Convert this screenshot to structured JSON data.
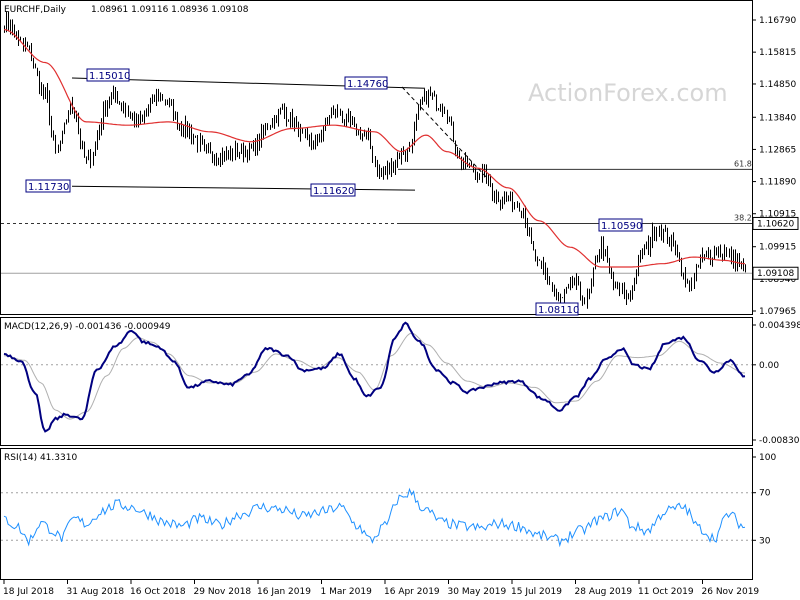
{
  "chart_data": {
    "type": "ohlc",
    "header": {
      "symbol": "EURCHF,Daily",
      "ohlc": "1.08961 1.09116 1.08936 1.09108"
    },
    "watermark": "ActionForex.com",
    "price_ticks": [
      "1.16790",
      "1.15815",
      "1.14850",
      "1.13840",
      "1.12865",
      "1.11890",
      "1.10915",
      "1.09915",
      "1.08940",
      "1.07965"
    ],
    "current_price": "1.09108",
    "level_tag": "1.10620",
    "date_ticks": [
      "18 Jul 2018",
      "31 Aug 2018",
      "16 Oct 2018",
      "29 Nov 2018",
      "16 Jan 2019",
      "1 Mar 2019",
      "16 Apr 2019",
      "30 May 2019",
      "15 Jul 2019",
      "28 Aug 2019",
      "11 Oct 2019",
      "26 Nov 2019"
    ],
    "annotations": [
      "1.15010",
      "1.14760",
      "1.11730",
      "1.11620",
      "1.10590",
      "1.08110"
    ],
    "fib_levels": [
      {
        "label": "61.8",
        "value": 1.1226
      },
      {
        "label": "38.2",
        "value": 1.1062
      }
    ],
    "price_anchors": [
      [
        0,
        1.168
      ],
      [
        10,
        1.16
      ],
      [
        20,
        1.145
      ],
      [
        25,
        1.128
      ],
      [
        33,
        1.142
      ],
      [
        40,
        1.125
      ],
      [
        52,
        1.145
      ],
      [
        65,
        1.137
      ],
      [
        75,
        1.145
      ],
      [
        88,
        1.135
      ],
      [
        100,
        1.127
      ],
      [
        118,
        1.128
      ],
      [
        135,
        1.14
      ],
      [
        150,
        1.13
      ],
      [
        160,
        1.14
      ],
      [
        175,
        1.133
      ],
      [
        183,
        1.121
      ],
      [
        195,
        1.128
      ],
      [
        205,
        1.145
      ],
      [
        213,
        1.142
      ],
      [
        222,
        1.125
      ],
      [
        232,
        1.121
      ],
      [
        240,
        1.114
      ],
      [
        250,
        1.112
      ],
      [
        260,
        1.093
      ],
      [
        270,
        1.083
      ],
      [
        277,
        1.088
      ],
      [
        282,
        1.083
      ],
      [
        290,
        1.099
      ],
      [
        297,
        1.087
      ],
      [
        302,
        1.084
      ],
      [
        312,
        1.099
      ],
      [
        317,
        1.105
      ],
      [
        325,
        1.1
      ],
      [
        332,
        1.087
      ],
      [
        340,
        1.096
      ],
      [
        348,
        1.098
      ],
      [
        355,
        1.095
      ],
      [
        360,
        1.091
      ]
    ],
    "ma_anchors": [
      [
        0,
        1.165
      ],
      [
        20,
        1.155
      ],
      [
        40,
        1.137
      ],
      [
        60,
        1.136
      ],
      [
        80,
        1.137
      ],
      [
        100,
        1.134
      ],
      [
        120,
        1.131
      ],
      [
        140,
        1.135
      ],
      [
        160,
        1.136
      ],
      [
        180,
        1.134
      ],
      [
        193,
        1.128
      ],
      [
        205,
        1.133
      ],
      [
        215,
        1.128
      ],
      [
        230,
        1.123
      ],
      [
        245,
        1.117
      ],
      [
        260,
        1.107
      ],
      [
        275,
        1.099
      ],
      [
        290,
        1.093
      ],
      [
        305,
        1.093
      ],
      [
        320,
        1.094
      ],
      [
        335,
        1.096
      ],
      [
        350,
        1.095
      ],
      [
        360,
        1.094
      ]
    ],
    "macd": {
      "label": "MACD(12,26,9) -0.001436 -0.000949",
      "ticks": [
        "0.004398",
        "0.00",
        "-0.008306"
      ],
      "ylim": [
        -0.008306,
        0.004398
      ],
      "macd_anchors": [
        [
          0,
          0.0012
        ],
        [
          8,
          0.0005
        ],
        [
          15,
          -0.003
        ],
        [
          20,
          -0.0075
        ],
        [
          25,
          -0.006
        ],
        [
          30,
          -0.0055
        ],
        [
          38,
          -0.006
        ],
        [
          45,
          -0.0005
        ],
        [
          55,
          0.0022
        ],
        [
          62,
          0.0038
        ],
        [
          68,
          0.0025
        ],
        [
          75,
          0.002
        ],
        [
          82,
          0.0005
        ],
        [
          90,
          -0.0025
        ],
        [
          100,
          -0.0018
        ],
        [
          110,
          -0.0022
        ],
        [
          118,
          -0.0012
        ],
        [
          128,
          0.0018
        ],
        [
          138,
          0.001
        ],
        [
          145,
          -0.0006
        ],
        [
          155,
          -0.0004
        ],
        [
          163,
          0.0012
        ],
        [
          170,
          -0.0015
        ],
        [
          176,
          -0.0035
        ],
        [
          183,
          -0.0025
        ],
        [
          190,
          0.003
        ],
        [
          195,
          0.0045
        ],
        [
          202,
          0.0025
        ],
        [
          210,
          -0.0005
        ],
        [
          218,
          -0.002
        ],
        [
          225,
          -0.003
        ],
        [
          232,
          -0.0025
        ],
        [
          240,
          -0.002
        ],
        [
          250,
          -0.0018
        ],
        [
          262,
          -0.0038
        ],
        [
          270,
          -0.005
        ],
        [
          278,
          -0.0035
        ],
        [
          285,
          -0.0015
        ],
        [
          292,
          0.0005
        ],
        [
          300,
          0.0018
        ],
        [
          306,
          0.0
        ],
        [
          313,
          -0.0005
        ],
        [
          322,
          0.0025
        ],
        [
          330,
          0.003
        ],
        [
          338,
          0.0005
        ],
        [
          345,
          -0.0008
        ],
        [
          353,
          0.0005
        ],
        [
          360,
          -0.0014
        ]
      ],
      "signal_anchors": [
        [
          0,
          0.001
        ],
        [
          10,
          0.0005
        ],
        [
          18,
          -0.002
        ],
        [
          25,
          -0.005
        ],
        [
          32,
          -0.006
        ],
        [
          40,
          -0.0052
        ],
        [
          50,
          -0.0012
        ],
        [
          58,
          0.0018
        ],
        [
          65,
          0.003
        ],
        [
          72,
          0.0025
        ],
        [
          80,
          0.0012
        ],
        [
          90,
          -0.0012
        ],
        [
          100,
          -0.002
        ],
        [
          112,
          -0.002
        ],
        [
          122,
          -0.0008
        ],
        [
          132,
          0.0012
        ],
        [
          142,
          0.0005
        ],
        [
          152,
          -0.0004
        ],
        [
          162,
          0.0008
        ],
        [
          172,
          -0.0008
        ],
        [
          180,
          -0.0028
        ],
        [
          188,
          0.001
        ],
        [
          198,
          0.0035
        ],
        [
          206,
          0.0022
        ],
        [
          215,
          0.0002
        ],
        [
          225,
          -0.0018
        ],
        [
          235,
          -0.0025
        ],
        [
          245,
          -0.002
        ],
        [
          258,
          -0.0025
        ],
        [
          268,
          -0.0042
        ],
        [
          278,
          -0.004
        ],
        [
          288,
          -0.0018
        ],
        [
          298,
          0.001
        ],
        [
          308,
          0.0008
        ],
        [
          318,
          0.001
        ],
        [
          328,
          0.0026
        ],
        [
          338,
          0.0012
        ],
        [
          348,
          0.0002
        ],
        [
          360,
          -0.0009
        ]
      ]
    },
    "rsi": {
      "label": "RSI(14) 41.3310",
      "ticks": [
        "100",
        "70",
        "30"
      ],
      "levels": [
        70,
        30
      ],
      "ylim": [
        0,
        100
      ],
      "anchors": [
        [
          0,
          48
        ],
        [
          6,
          42
        ],
        [
          12,
          30
        ],
        [
          18,
          45
        ],
        [
          22,
          40
        ],
        [
          28,
          32
        ],
        [
          34,
          48
        ],
        [
          40,
          44
        ],
        [
          48,
          55
        ],
        [
          55,
          60
        ],
        [
          62,
          58
        ],
        [
          70,
          52
        ],
        [
          78,
          45
        ],
        [
          86,
          42
        ],
        [
          95,
          48
        ],
        [
          105,
          43
        ],
        [
          115,
          52
        ],
        [
          125,
          58
        ],
        [
          135,
          56
        ],
        [
          145,
          50
        ],
        [
          155,
          54
        ],
        [
          163,
          58
        ],
        [
          172,
          42
        ],
        [
          178,
          30
        ],
        [
          185,
          42
        ],
        [
          192,
          65
        ],
        [
          197,
          70
        ],
        [
          205,
          55
        ],
        [
          213,
          45
        ],
        [
          222,
          42
        ],
        [
          232,
          40
        ],
        [
          240,
          44
        ],
        [
          250,
          42
        ],
        [
          260,
          34
        ],
        [
          270,
          30
        ],
        [
          280,
          38
        ],
        [
          290,
          48
        ],
        [
          300,
          55
        ],
        [
          305,
          42
        ],
        [
          312,
          38
        ],
        [
          322,
          55
        ],
        [
          330,
          58
        ],
        [
          338,
          40
        ],
        [
          345,
          32
        ],
        [
          352,
          52
        ],
        [
          360,
          41
        ]
      ]
    }
  }
}
